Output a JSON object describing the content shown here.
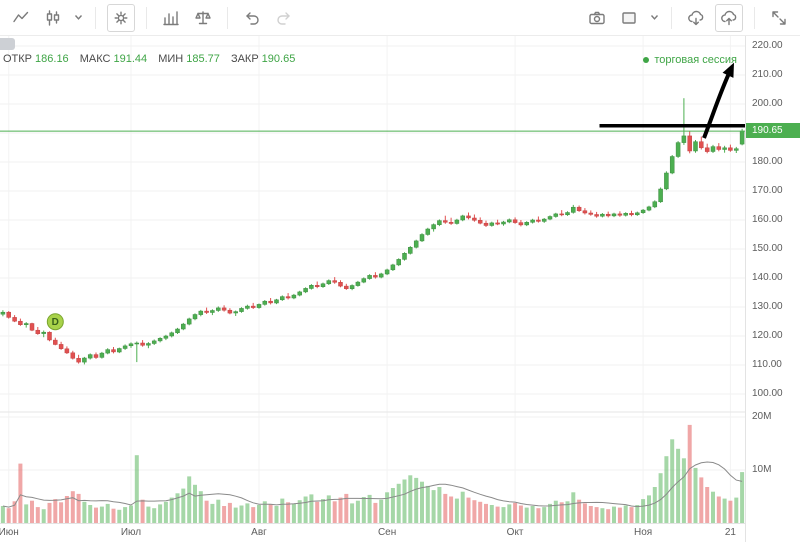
{
  "toolbar": {
    "icons_left": [
      "line-chart-icon",
      "candlestick-style-icon",
      "chevron-down-icon",
      "settings-gear-icon",
      "indicators-icon",
      "compare-scales-icon",
      "undo-icon",
      "redo-icon"
    ],
    "icons_right": [
      "camera-snapshot-icon",
      "layout-icon",
      "chevron-down-icon",
      "cloud-download-icon",
      "cloud-upload-icon",
      "fullscreen-icon"
    ]
  },
  "legend": {
    "items": [
      {
        "label": "ОТКР",
        "value": "186.16"
      },
      {
        "label": "МАКС",
        "value": "191.44"
      },
      {
        "label": "МИН",
        "value": "185.77"
      },
      {
        "label": "ЗАКР",
        "value": "190.65"
      }
    ]
  },
  "session": {
    "label": "торговая сессия"
  },
  "chart_data": {
    "type": "candlestick",
    "series_format": [
      "open",
      "high",
      "low",
      "close",
      "volume_millions"
    ],
    "price_axis": {
      "labels": [
        "220.00",
        "210.00",
        "200.00",
        "180.00",
        "170.00",
        "160.00",
        "150.00",
        "140.00",
        "130.00",
        "120.00",
        "110.00",
        "100.00"
      ],
      "min": 100,
      "max": 220,
      "step": 10,
      "current": "190.65"
    },
    "volume_axis": [
      {
        "label": "20M",
        "value": 20
      },
      {
        "label": "10M",
        "value": 10
      }
    ],
    "time_ticks": [
      {
        "label": "Июн",
        "i": 1
      },
      {
        "label": "Июл",
        "i": 22
      },
      {
        "label": "Авг",
        "i": 44
      },
      {
        "label": "Сен",
        "i": 66
      },
      {
        "label": "Окт",
        "i": 88
      },
      {
        "label": "Ноя",
        "i": 110
      },
      {
        "label": "21",
        "i": 125
      }
    ],
    "last_price": 190.65,
    "colors": {
      "up": "#4caf50",
      "down": "#e15050",
      "up_border": "#3d8b40",
      "down_border": "#c04545",
      "last_price_line": "#4caf50",
      "annotation": "#000000",
      "grid": "#f0f0f0"
    },
    "annotations": {
      "horizontal_line": {
        "price": 192.5,
        "start_index": 103
      },
      "arrow": {
        "type": "arrow",
        "direction": "up"
      },
      "marker": {
        "i": 9,
        "label": "D"
      }
    },
    "candles": [
      [
        127.5,
        128.9,
        126.8,
        128.2,
        3.2
      ],
      [
        128.2,
        128.6,
        126.0,
        126.4,
        2.8
      ],
      [
        126.4,
        127.2,
        124.8,
        125.1,
        4.1
      ],
      [
        125.1,
        126.0,
        123.5,
        123.9,
        11.2
      ],
      [
        123.9,
        124.8,
        122.9,
        124.3,
        3.5
      ],
      [
        124.3,
        124.6,
        121.7,
        122.0,
        4.2
      ],
      [
        122.0,
        123.1,
        120.4,
        120.8,
        3.0
      ],
      [
        120.8,
        121.9,
        119.6,
        121.3,
        2.6
      ],
      [
        121.3,
        121.6,
        118.2,
        118.6,
        3.8
      ],
      [
        118.6,
        119.4,
        116.8,
        117.1,
        4.5
      ],
      [
        117.1,
        118.0,
        115.2,
        115.6,
        3.9
      ],
      [
        115.6,
        116.4,
        113.8,
        114.2,
        5.1
      ],
      [
        114.2,
        114.9,
        111.9,
        112.3,
        6.0
      ],
      [
        112.3,
        113.5,
        110.5,
        111.0,
        5.5
      ],
      [
        111.0,
        112.8,
        110.2,
        112.4,
        4.0
      ],
      [
        112.4,
        114.0,
        111.9,
        113.6,
        3.4
      ],
      [
        113.6,
        114.3,
        112.1,
        112.6,
        2.9
      ],
      [
        112.6,
        114.5,
        112.2,
        114.1,
        3.1
      ],
      [
        114.1,
        115.8,
        113.7,
        115.3,
        3.6
      ],
      [
        115.3,
        116.2,
        114.0,
        114.5,
        2.7
      ],
      [
        114.5,
        116.0,
        114.1,
        115.7,
        2.5
      ],
      [
        115.7,
        117.1,
        115.2,
        116.6,
        3.0
      ],
      [
        116.6,
        117.8,
        115.9,
        117.3,
        3.3
      ],
      [
        117.3,
        118.1,
        111.0,
        117.6,
        12.8
      ],
      [
        117.6,
        118.6,
        116.3,
        116.8,
        4.4
      ],
      [
        116.8,
        117.9,
        115.8,
        117.4,
        3.1
      ],
      [
        117.4,
        118.8,
        116.9,
        118.3,
        2.8
      ],
      [
        118.3,
        119.6,
        117.8,
        119.2,
        3.5
      ],
      [
        119.2,
        120.4,
        118.6,
        120.0,
        4.0
      ],
      [
        120.0,
        121.5,
        119.5,
        121.1,
        4.8
      ],
      [
        121.1,
        122.8,
        120.7,
        122.4,
        5.6
      ],
      [
        122.4,
        124.5,
        122.0,
        124.1,
        6.5
      ],
      [
        124.1,
        126.3,
        123.7,
        125.9,
        8.8
      ],
      [
        125.9,
        127.8,
        125.4,
        127.4,
        7.2
      ],
      [
        127.4,
        129.0,
        126.8,
        128.6,
        6.0
      ],
      [
        128.6,
        129.8,
        127.6,
        128.1,
        4.2
      ],
      [
        128.1,
        129.2,
        127.2,
        128.8,
        3.6
      ],
      [
        128.8,
        130.2,
        128.3,
        129.7,
        4.4
      ],
      [
        129.7,
        130.6,
        128.4,
        128.9,
        3.2
      ],
      [
        128.9,
        129.6,
        127.5,
        127.9,
        3.8
      ],
      [
        127.9,
        128.8,
        126.9,
        128.4,
        2.9
      ],
      [
        128.4,
        129.9,
        128.0,
        129.5,
        3.3
      ],
      [
        129.5,
        130.8,
        129.1,
        130.3,
        3.7
      ],
      [
        130.3,
        131.4,
        129.3,
        129.8,
        3.0
      ],
      [
        129.8,
        131.2,
        129.4,
        130.9,
        3.4
      ],
      [
        130.9,
        132.4,
        130.5,
        132.0,
        4.1
      ],
      [
        132.0,
        133.1,
        130.9,
        131.4,
        3.5
      ],
      [
        131.4,
        132.8,
        131.0,
        132.5,
        3.2
      ],
      [
        132.5,
        134.0,
        132.1,
        133.6,
        4.6
      ],
      [
        133.6,
        134.8,
        132.6,
        133.1,
        3.9
      ],
      [
        133.1,
        134.5,
        132.7,
        134.1,
        3.6
      ],
      [
        134.1,
        135.6,
        133.7,
        135.2,
        4.3
      ],
      [
        135.2,
        136.8,
        134.8,
        136.4,
        5.0
      ],
      [
        136.4,
        137.9,
        136.0,
        137.5,
        5.4
      ],
      [
        137.5,
        138.8,
        136.5,
        137.0,
        4.0
      ],
      [
        137.0,
        138.4,
        136.6,
        138.0,
        4.5
      ],
      [
        138.0,
        139.5,
        137.6,
        139.1,
        5.2
      ],
      [
        139.1,
        140.3,
        138.0,
        138.5,
        4.1
      ],
      [
        138.5,
        139.2,
        136.8,
        137.2,
        4.8
      ],
      [
        137.2,
        138.0,
        135.9,
        136.3,
        5.5
      ],
      [
        136.3,
        137.8,
        135.8,
        137.4,
        3.7
      ],
      [
        137.4,
        139.0,
        137.0,
        138.6,
        4.2
      ],
      [
        138.6,
        140.2,
        138.2,
        139.8,
        4.9
      ],
      [
        139.8,
        141.3,
        139.4,
        140.9,
        5.3
      ],
      [
        140.9,
        142.0,
        139.8,
        140.3,
        3.8
      ],
      [
        140.3,
        141.8,
        139.9,
        141.4,
        4.4
      ],
      [
        141.4,
        143.2,
        141.0,
        142.8,
        5.8
      ],
      [
        142.8,
        144.9,
        142.4,
        144.5,
        6.6
      ],
      [
        144.5,
        146.8,
        144.1,
        146.4,
        7.4
      ],
      [
        146.4,
        148.9,
        146.0,
        148.5,
        8.2
      ],
      [
        148.5,
        151.0,
        148.1,
        150.6,
        9.0
      ],
      [
        150.6,
        153.2,
        150.2,
        152.8,
        8.5
      ],
      [
        152.8,
        155.4,
        152.4,
        155.0,
        7.8
      ],
      [
        155.0,
        157.3,
        154.6,
        156.9,
        7.0
      ],
      [
        156.9,
        158.8,
        156.0,
        158.4,
        6.2
      ],
      [
        158.4,
        160.2,
        157.9,
        159.8,
        6.8
      ],
      [
        159.8,
        161.5,
        158.7,
        159.2,
        5.5
      ],
      [
        159.2,
        160.8,
        158.3,
        158.8,
        5.0
      ],
      [
        158.8,
        160.4,
        158.4,
        160.0,
        4.6
      ],
      [
        160.0,
        161.8,
        159.6,
        161.4,
        5.9
      ],
      [
        161.4,
        162.6,
        160.2,
        160.7,
        4.8
      ],
      [
        160.7,
        161.9,
        159.4,
        159.9,
        4.3
      ],
      [
        159.9,
        160.9,
        158.5,
        158.9,
        4.0
      ],
      [
        158.9,
        159.8,
        157.6,
        158.1,
        3.6
      ],
      [
        158.1,
        159.4,
        157.7,
        159.0,
        3.4
      ],
      [
        159.0,
        160.1,
        158.2,
        158.6,
        3.1
      ],
      [
        158.6,
        159.7,
        158.0,
        159.3,
        3.0
      ],
      [
        159.3,
        160.5,
        158.9,
        160.1,
        3.5
      ],
      [
        160.1,
        160.9,
        158.7,
        159.1,
        3.8
      ],
      [
        159.1,
        160.0,
        157.8,
        158.3,
        3.3
      ],
      [
        158.3,
        159.6,
        157.9,
        159.2,
        2.9
      ],
      [
        159.2,
        160.4,
        158.8,
        160.0,
        3.2
      ],
      [
        160.0,
        161.2,
        159.1,
        159.5,
        2.8
      ],
      [
        159.5,
        160.7,
        159.0,
        160.3,
        3.0
      ],
      [
        160.3,
        161.6,
        159.9,
        161.2,
        3.6
      ],
      [
        161.2,
        162.5,
        160.8,
        162.1,
        4.2
      ],
      [
        162.1,
        163.4,
        161.3,
        161.8,
        3.9
      ],
      [
        161.8,
        163.0,
        161.4,
        162.6,
        4.1
      ],
      [
        162.6,
        165.2,
        162.2,
        164.4,
        5.8
      ],
      [
        164.4,
        165.0,
        162.8,
        163.2,
        4.4
      ],
      [
        163.2,
        164.1,
        161.9,
        162.4,
        3.7
      ],
      [
        162.4,
        163.3,
        161.5,
        161.9,
        3.2
      ],
      [
        161.9,
        162.8,
        160.8,
        161.3,
        3.0
      ],
      [
        161.3,
        162.4,
        160.9,
        162.0,
        2.8
      ],
      [
        162.0,
        162.9,
        160.9,
        161.4,
        2.6
      ],
      [
        161.4,
        162.5,
        161.0,
        162.1,
        3.1
      ],
      [
        162.1,
        163.0,
        161.1,
        161.6,
        2.9
      ],
      [
        161.6,
        162.7,
        161.2,
        162.3,
        3.3
      ],
      [
        162.3,
        163.2,
        161.3,
        161.8,
        3.0
      ],
      [
        161.8,
        162.9,
        161.4,
        162.5,
        3.4
      ],
      [
        162.5,
        163.8,
        162.1,
        163.4,
        4.5
      ],
      [
        163.4,
        164.9,
        163.0,
        164.5,
        5.2
      ],
      [
        164.5,
        166.8,
        164.1,
        166.3,
        6.8
      ],
      [
        166.3,
        171.2,
        165.9,
        170.7,
        9.4
      ],
      [
        170.7,
        176.8,
        170.3,
        176.2,
        12.6
      ],
      [
        176.2,
        182.4,
        175.8,
        181.9,
        15.8
      ],
      [
        181.9,
        187.2,
        181.4,
        186.7,
        14.0
      ],
      [
        186.7,
        202.0,
        185.9,
        189.0,
        12.2
      ],
      [
        189.0,
        190.5,
        183.0,
        183.8,
        18.5
      ],
      [
        183.8,
        187.6,
        183.2,
        187.0,
        10.4
      ],
      [
        187.0,
        188.8,
        184.3,
        184.9,
        8.6
      ],
      [
        184.9,
        186.3,
        183.0,
        183.6,
        6.8
      ],
      [
        183.6,
        185.9,
        183.1,
        185.3,
        5.9
      ],
      [
        185.3,
        186.5,
        183.7,
        184.3,
        5.0
      ],
      [
        184.3,
        185.6,
        183.2,
        184.9,
        4.6
      ],
      [
        184.9,
        186.0,
        183.5,
        184.0,
        4.2
      ],
      [
        184.0,
        185.2,
        183.1,
        184.6,
        4.8
      ],
      [
        186.16,
        191.44,
        185.77,
        190.65,
        9.6
      ]
    ]
  }
}
